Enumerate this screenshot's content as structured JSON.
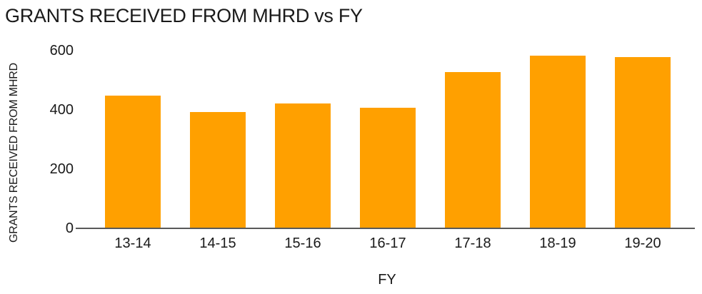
{
  "colors": {
    "bar": "#FFA000",
    "axis_line": "#595959",
    "text": "#1A1A1A",
    "background": "#FFFFFF"
  },
  "chart_data": {
    "type": "bar",
    "title": "GRANTS RECEIVED FROM MHRD vs FY",
    "categories": [
      "13-14",
      "14-15",
      "15-16",
      "16-17",
      "17-18",
      "18-19",
      "19-20"
    ],
    "values": [
      445,
      390,
      420,
      405,
      525,
      580,
      575
    ],
    "xlabel": "FY",
    "ylabel": "GRANTS RECEIVED FROM MHRD",
    "ylim": [
      0,
      600
    ],
    "yticks": [
      0,
      200,
      400,
      600
    ],
    "grid": false,
    "legend_position": "none",
    "bar_color": "#FFA000"
  }
}
